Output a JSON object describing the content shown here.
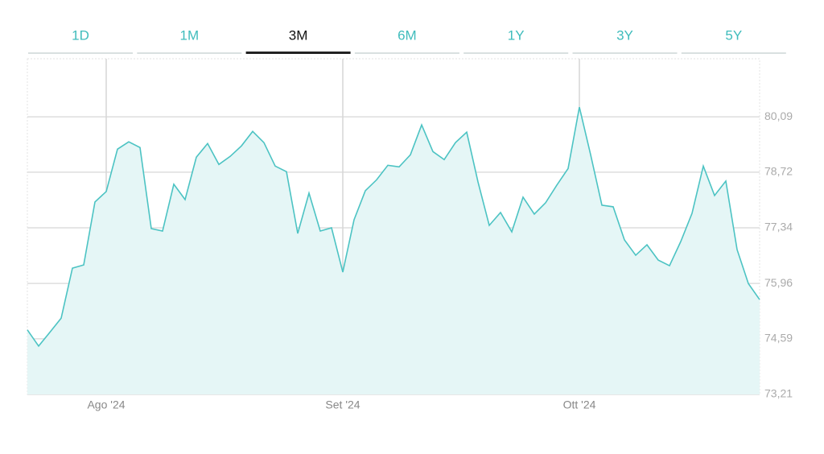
{
  "tabs": [
    "1D",
    "1M",
    "3M",
    "6M",
    "1Y",
    "3Y",
    "5Y"
  ],
  "active_tab": 2,
  "chart_data": {
    "type": "area",
    "categories": [
      null,
      null,
      null,
      null,
      null,
      null,
      null,
      "Ago '24",
      null,
      null,
      null,
      null,
      null,
      null,
      null,
      null,
      null,
      null,
      null,
      null,
      null,
      null,
      null,
      null,
      null,
      null,
      null,
      null,
      "Set '24",
      null,
      null,
      null,
      null,
      null,
      null,
      null,
      null,
      null,
      null,
      null,
      null,
      null,
      null,
      null,
      null,
      null,
      null,
      null,
      null,
      "Ott '24",
      null,
      null,
      null,
      null,
      null,
      null,
      null,
      null,
      null,
      null,
      null,
      null,
      null,
      null,
      null,
      null
    ],
    "values": [
      74.81,
      74.41,
      74.75,
      75.1,
      76.34,
      76.42,
      77.98,
      78.24,
      79.29,
      79.47,
      79.33,
      77.32,
      77.26,
      78.42,
      78.04,
      79.09,
      79.43,
      78.91,
      79.11,
      79.37,
      79.73,
      79.45,
      78.87,
      78.73,
      77.2,
      78.2,
      77.26,
      77.34,
      76.24,
      77.54,
      78.26,
      78.53,
      78.89,
      78.85,
      79.15,
      79.89,
      79.23,
      79.03,
      79.45,
      79.71,
      78.48,
      77.4,
      77.72,
      77.24,
      78.1,
      77.68,
      77.96,
      78.4,
      78.81,
      80.33,
      79.15,
      77.9,
      77.86,
      77.04,
      76.66,
      76.92,
      76.54,
      76.4,
      77.0,
      77.7,
      78.87,
      78.14,
      78.5,
      76.8,
      75.96,
      75.56
    ],
    "color": "#4cc3c3",
    "fill_color": "#e5f6f6",
    "ylim": [
      73.21,
      81.53
    ],
    "yticks": [
      {
        "value": 73.21,
        "label": "73,21"
      },
      {
        "value": 74.59,
        "label": "74,59"
      },
      {
        "value": 75.96,
        "label": "75,96"
      },
      {
        "value": 77.34,
        "label": "77,34"
      },
      {
        "value": 78.72,
        "label": "78,72"
      },
      {
        "value": 80.09,
        "label": "80,09"
      }
    ],
    "grid": true
  }
}
